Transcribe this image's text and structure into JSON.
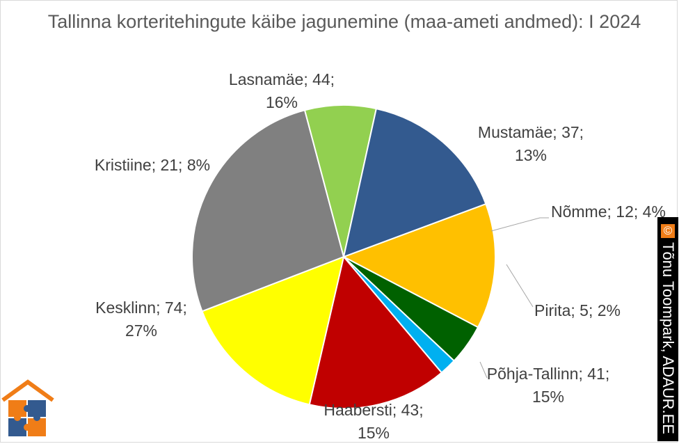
{
  "chart_data": {
    "type": "pie",
    "title": "Tallinna korteritehingute käibe jagunemine (maa-ameti andmed): I 2024",
    "slices": [
      {
        "name": "Mustamäe",
        "value": 37,
        "percent": "13%",
        "color": "#ffc000"
      },
      {
        "name": "Nõmme",
        "value": 12,
        "percent": "4%",
        "color": "#006100"
      },
      {
        "name": "Pirita",
        "value": 5,
        "percent": "2%",
        "color": "#00b0f0"
      },
      {
        "name": "Põhja-Tallinn",
        "value": 41,
        "percent": "15%",
        "color": "#c00000"
      },
      {
        "name": "Haabersti",
        "value": 43,
        "percent": "15%",
        "color": "#ffff00"
      },
      {
        "name": "Kesklinn",
        "value": 74,
        "percent": "27%",
        "color": "#808080"
      },
      {
        "name": "Kristiine",
        "value": 21,
        "percent": "8%",
        "color": "#92d050"
      },
      {
        "name": "Lasnamäe",
        "value": 44,
        "percent": "16%",
        "color": "#335a8f"
      }
    ],
    "legend": "none (data labels on slices)"
  },
  "watermark": {
    "copyright_symbol": "©",
    "text": "Tõnu Toompark, ADAUR.EE",
    "copyright_color": "#f07d17"
  },
  "logo": {
    "icon": "house-puzzle-logo-icon",
    "roof_color": "#f07d17",
    "piece_colors": [
      "#f07d17",
      "#335a8f"
    ]
  }
}
